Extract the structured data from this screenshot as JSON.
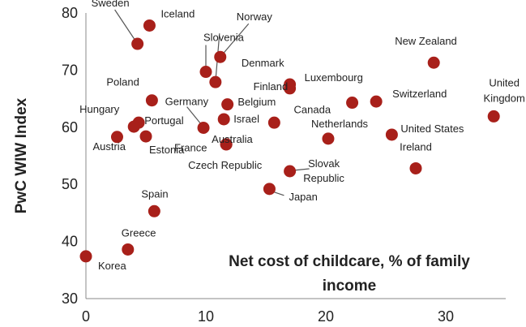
{
  "chart_data": {
    "type": "scatter",
    "title": "",
    "xlabel_line1": "Net cost of childcare, % of family",
    "xlabel_line2": "income",
    "ylabel": "PwC WIW Index",
    "xlim": [
      0,
      35
    ],
    "ylim": [
      30,
      80
    ],
    "xticks": [
      0,
      10,
      20,
      30
    ],
    "yticks": [
      30,
      40,
      50,
      60,
      70,
      80
    ],
    "grid": false,
    "marker_color": "#A8201A",
    "label_color": "#222222",
    "points": [
      {
        "label": "Sweden",
        "x": 4.3,
        "y": 74.6
      },
      {
        "label": "Iceland",
        "x": 5.3,
        "y": 77.8
      },
      {
        "label": "Norway",
        "x": 11.2,
        "y": 72.3
      },
      {
        "label": "Slovenia",
        "x": 10.0,
        "y": 69.7
      },
      {
        "label": "Denmark",
        "x": 10.8,
        "y": 67.9
      },
      {
        "label": "New Zealand",
        "x": 29.0,
        "y": 71.3
      },
      {
        "label": "Poland",
        "x": 5.5,
        "y": 64.7
      },
      {
        "label": "Luxembourg",
        "x": 17.0,
        "y": 67.5
      },
      {
        "label": "Finland",
        "x": 17.0,
        "y": 66.8
      },
      {
        "label": "Germany",
        "x": 11.8,
        "y": 64.0
      },
      {
        "label": "Belgium",
        "x": 15.7,
        "y": 60.8
      },
      {
        "label": "Canada",
        "x": 22.2,
        "y": 64.3
      },
      {
        "label": "Switzerland",
        "x": 24.2,
        "y": 64.5
      },
      {
        "label": "United Kingdom",
        "x": 34.0,
        "y": 61.9
      },
      {
        "label": "Hungary",
        "x": 4.4,
        "y": 60.8
      },
      {
        "label": "Portugal",
        "x": 4.0,
        "y": 60.1
      },
      {
        "label": "France",
        "x": 9.8,
        "y": 59.9
      },
      {
        "label": "Israel",
        "x": 11.5,
        "y": 61.4
      },
      {
        "label": "Netherlands",
        "x": 20.2,
        "y": 58.0
      },
      {
        "label": "United States",
        "x": 25.5,
        "y": 58.7
      },
      {
        "label": "Austria",
        "x": 2.6,
        "y": 58.3
      },
      {
        "label": "Estonia",
        "x": 5.0,
        "y": 58.4
      },
      {
        "label": "Australia",
        "x": 11.7,
        "y": 57.0
      },
      {
        "label": "Czech Republic",
        "x": 11.7,
        "y": 57.0
      },
      {
        "label": "Slovak Republic",
        "x": 17.0,
        "y": 52.3
      },
      {
        "label": "Ireland",
        "x": 27.5,
        "y": 52.8
      },
      {
        "label": "Japan",
        "x": 15.3,
        "y": 49.2
      },
      {
        "label": "Spain",
        "x": 5.7,
        "y": 45.3
      },
      {
        "label": "Greece",
        "x": 3.5,
        "y": 38.6
      },
      {
        "label": "Korea",
        "x": 0.0,
        "y": 37.4
      }
    ]
  }
}
